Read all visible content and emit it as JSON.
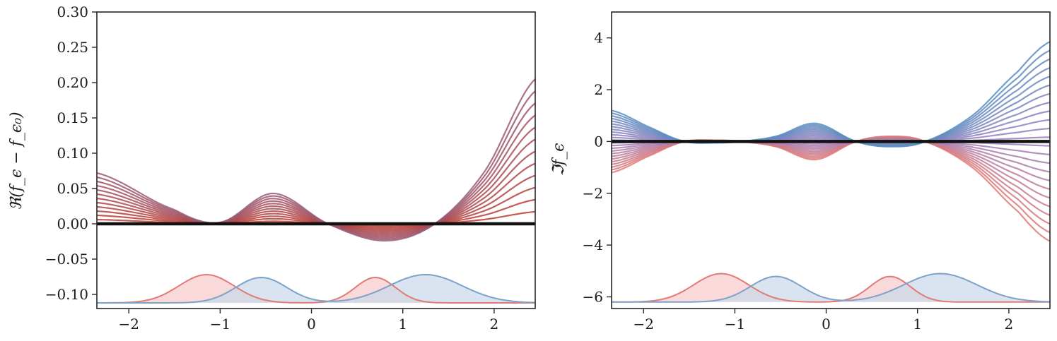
{
  "chart_data": [
    {
      "type": "line",
      "panel": "left",
      "ylabel": "ℜ(f_ϵ − f_ϵ₀)",
      "xlim": [
        -2.35,
        2.45
      ],
      "ylim": [
        -0.12,
        0.3
      ],
      "xticks": [
        -2,
        -1,
        0,
        1,
        2
      ],
      "xtick_labels": [
        "−2",
        "−1",
        "0",
        "1",
        "2"
      ],
      "yticks": [
        -0.1,
        -0.05,
        0.0,
        0.05,
        0.1,
        0.15,
        0.2,
        0.25,
        0.3
      ],
      "ytick_labels": [
        "−0.10",
        "−0.05",
        "0.00",
        "0.05",
        "0.10",
        "0.15",
        "0.20",
        "0.25",
        "0.30"
      ],
      "family": {
        "count": 12,
        "color_start": "#c0392b",
        "color_end": "#9a5a75",
        "knot_x": [
          -2.35,
          -1.5,
          -1.0,
          -0.42,
          0.18,
          0.8,
          1.35,
          1.9,
          2.45
        ],
        "knot_y_max": [
          0.072,
          0.02,
          0.002,
          0.043,
          0.0,
          -0.024,
          0.0,
          0.075,
          0.205
        ]
      },
      "baseline": 0.0,
      "densities": {
        "base": -0.112,
        "height": 0.04,
        "red": {
          "color": "#e07a76",
          "fill": "#f6c9cb",
          "peaks": [
            {
              "mu": -1.15,
              "sigma": 0.3,
              "amp": 1.0
            },
            {
              "mu": 0.7,
              "sigma": 0.22,
              "amp": 0.9
            }
          ]
        },
        "blue": {
          "color": "#7da2c9",
          "fill": "#c9d9ea",
          "peaks": [
            {
              "mu": -0.55,
              "sigma": 0.28,
              "amp": 0.9
            },
            {
              "mu": 1.25,
              "sigma": 0.4,
              "amp": 1.0
            }
          ]
        }
      }
    },
    {
      "type": "line",
      "panel": "right",
      "ylabel": "ℑf_ϵ",
      "xlim": [
        -2.35,
        2.45
      ],
      "ylim": [
        -6.45,
        5.0
      ],
      "xticks": [
        -2,
        -1,
        0,
        1,
        2
      ],
      "xtick_labels": [
        "−2",
        "−1",
        "0",
        "1",
        "2"
      ],
      "yticks": [
        -6,
        -4,
        -2,
        0,
        2,
        4
      ],
      "ytick_labels": [
        "−6",
        "−4",
        "−2",
        "0",
        "2",
        "4"
      ],
      "family": {
        "count": 24,
        "color_start": "#e07a76",
        "color_mid": "#9c7fbf",
        "color_end": "#5b8ec1",
        "knot_x": [
          -2.35,
          -1.9,
          -1.55,
          -1.2,
          -0.95,
          -0.55,
          -0.12,
          0.33,
          0.7,
          1.08,
          1.6,
          2.1,
          2.45
        ],
        "knot_y_max": [
          1.2,
          0.5,
          0.0,
          -0.05,
          0.0,
          0.2,
          0.7,
          0.0,
          -0.2,
          0.0,
          1.0,
          2.7,
          3.85
        ]
      },
      "baseline": 0.0,
      "densities": {
        "base": -6.2,
        "height": 1.1,
        "red": {
          "color": "#e07a76",
          "fill": "#f6c9cb",
          "peaks": [
            {
              "mu": -1.15,
              "sigma": 0.3,
              "amp": 1.0
            },
            {
              "mu": 0.7,
              "sigma": 0.22,
              "amp": 0.9
            }
          ]
        },
        "blue": {
          "color": "#7da2c9",
          "fill": "#c9d9ea",
          "peaks": [
            {
              "mu": -0.55,
              "sigma": 0.28,
              "amp": 0.9
            },
            {
              "mu": 1.25,
              "sigma": 0.4,
              "amp": 1.0
            }
          ]
        }
      }
    }
  ]
}
